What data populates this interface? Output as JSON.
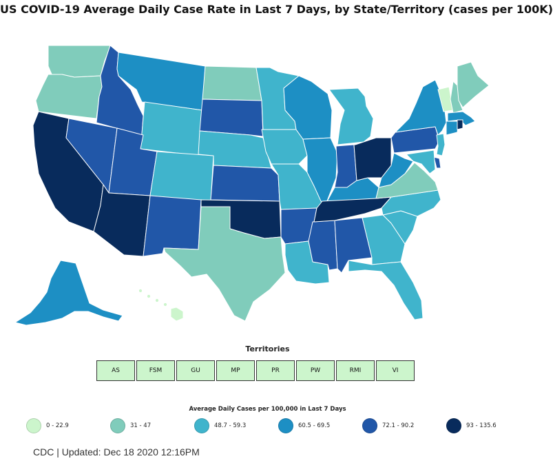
{
  "title": "US COVID-19 Average Daily Case Rate in Last 7 Days, by State/Territory (cases per 100K)",
  "territories_heading": "Territories",
  "territories": [
    {
      "code": "AS",
      "bin": 0
    },
    {
      "code": "FSM",
      "bin": 0
    },
    {
      "code": "GU",
      "bin": 0
    },
    {
      "code": "MP",
      "bin": 0
    },
    {
      "code": "PR",
      "bin": 0
    },
    {
      "code": "PW",
      "bin": 0
    },
    {
      "code": "RMI",
      "bin": 0
    },
    {
      "code": "VI",
      "bin": 0
    }
  ],
  "legend": {
    "title": "Average Daily Cases per 100,000 in Last 7 Days",
    "bins": [
      {
        "label": "0 - 22.9",
        "color": "#ccf5cc"
      },
      {
        "label": "31 - 47",
        "color": "#80ccbb"
      },
      {
        "label": "48.7 - 59.3",
        "color": "#40b4cc"
      },
      {
        "label": "60.5 - 69.5",
        "color": "#1d8fc4"
      },
      {
        "label": "72.1 - 90.2",
        "color": "#2157a8"
      },
      {
        "label": "93 - 135.6",
        "color": "#082b5c"
      }
    ]
  },
  "footer": "CDC | Updated: Dec 18 2020 12:16PM",
  "states": {
    "WA": 1,
    "OR": 1,
    "CA": 5,
    "NV": 4,
    "ID": 4,
    "MT": 3,
    "WY": 2,
    "UT": 4,
    "AZ": 5,
    "CO": 2,
    "NM": 4,
    "ND": 1,
    "SD": 4,
    "NE": 2,
    "KS": 4,
    "OK": 5,
    "TX": 1,
    "MN": 2,
    "IA": 2,
    "MO": 2,
    "AR": 4,
    "LA": 2,
    "WI": 3,
    "IL": 3,
    "MS": 4,
    "MI": 2,
    "IN": 4,
    "KY": 3,
    "TN": 5,
    "AL": 4,
    "OH": 5,
    "GA": 2,
    "FL": 2,
    "SC": 2,
    "NC": 2,
    "VA": 1,
    "WV": 3,
    "PA": 4,
    "NY": 3,
    "VT": 0,
    "NH": 1,
    "ME": 1,
    "MA": 3,
    "CT": 3,
    "RI": 5,
    "NJ": 2,
    "DE": 4,
    "MD": 2,
    "AK": 3,
    "HI": 0
  }
}
